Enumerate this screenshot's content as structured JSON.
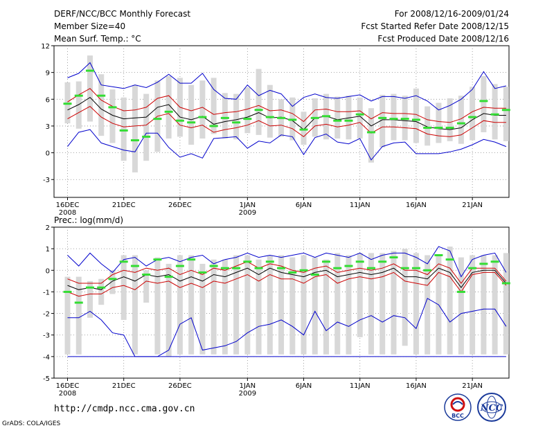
{
  "header": {
    "title": "DERF/NCC/BCC Monthly Forecast",
    "member_size": "Member Size=40",
    "range": "For 2008/12/16-2009/01/24",
    "started": "Fcst Started Refer Date 2008/12/15",
    "produced": "Fcst Produced Date 2008/12/16"
  },
  "footer": {
    "url": "http://cmdp.ncc.cma.gov.cn",
    "grads": "GrADS: COLA/IGES",
    "logo_bcc": "BCC",
    "logo_ncc": "NCC"
  },
  "colors": {
    "box": "#d8d8d8",
    "obs": "#33dd33",
    "mean": "#000000",
    "spread": "#cc0000",
    "envelope": "#0000cc"
  },
  "chart_data": [
    {
      "type": "line",
      "title": "Mean Surf. Temp.: °C",
      "ylim": [
        -5,
        12
      ],
      "yticks": [
        -3,
        0,
        3,
        6,
        9,
        12
      ],
      "xticks": [
        {
          "day": 1,
          "label": "16DEC",
          "sub": "2008"
        },
        {
          "day": 6,
          "label": "21DEC",
          "sub": ""
        },
        {
          "day": 11,
          "label": "26DEC",
          "sub": ""
        },
        {
          "day": 17,
          "label": "1JAN",
          "sub": "2009"
        },
        {
          "day": 22,
          "label": "6JAN",
          "sub": ""
        },
        {
          "day": 27,
          "label": "11JAN",
          "sub": ""
        },
        {
          "day": 32,
          "label": "16JAN",
          "sub": ""
        },
        {
          "day": 37,
          "label": "21JAN",
          "sub": ""
        }
      ],
      "days": [
        1,
        2,
        3,
        4,
        5,
        6,
        7,
        8,
        9,
        10,
        11,
        12,
        13,
        14,
        15,
        16,
        17,
        18,
        19,
        20,
        21,
        22,
        23,
        24,
        25,
        26,
        27,
        28,
        29,
        30,
        31,
        32,
        33,
        34,
        35,
        36,
        37,
        38,
        39,
        40
      ],
      "box_low": [
        3.3,
        2.7,
        3.5,
        1.9,
        1.1,
        -0.9,
        -2.2,
        -0.9,
        0.1,
        1.6,
        1.8,
        0.9,
        1.6,
        2.1,
        1.6,
        1.5,
        2.2,
        2.0,
        1.7,
        1.8,
        1.4,
        0.9,
        1.8,
        1.5,
        1.6,
        1.5,
        1.6,
        -1.1,
        0.6,
        1.4,
        1.4,
        1.1,
        0.8,
        1.1,
        1.3,
        1.0,
        1.4,
        2.3,
        1.5,
        1.3
      ],
      "box_high": [
        7.9,
        8.0,
        10.9,
        8.8,
        7.1,
        6.2,
        7.6,
        6.6,
        8.1,
        8.6,
        8.4,
        7.6,
        8.1,
        8.4,
        6.7,
        6.6,
        7.3,
        9.4,
        7.6,
        6.0,
        6.2,
        4.6,
        6.1,
        6.6,
        6.3,
        6.4,
        6.2,
        5.0,
        6.5,
        6.6,
        6.4,
        7.2,
        5.2,
        5.6,
        6.1,
        6.4,
        7.4,
        8.6,
        7.7,
        7.4
      ],
      "obs": [
        5.5,
        6.4,
        9.2,
        6.4,
        5.1,
        2.5,
        1.4,
        1.8,
        3.8,
        4.6,
        3.6,
        3.4,
        4.0,
        3.0,
        3.9,
        3.4,
        3.8,
        4.8,
        4.0,
        3.9,
        3.7,
        2.6,
        3.9,
        4.1,
        3.6,
        3.6,
        4.3,
        2.3,
        3.9,
        3.8,
        3.8,
        3.7,
        2.8,
        2.8,
        2.8,
        3.3,
        4.0,
        5.8,
        4.3,
        4.8
      ],
      "mean": [
        4.8,
        5.4,
        6.2,
        4.9,
        4.2,
        3.8,
        3.9,
        4.0,
        5.1,
        5.4,
        4.0,
        3.7,
        4.1,
        3.2,
        3.5,
        3.7,
        4.0,
        4.5,
        3.9,
        4.0,
        3.6,
        2.6,
        3.9,
        4.1,
        3.7,
        3.9,
        4.1,
        3.0,
        3.7,
        3.7,
        3.6,
        3.5,
        2.9,
        2.7,
        2.6,
        2.8,
        3.7,
        4.4,
        4.2,
        4.2
      ],
      "upper_sd": [
        5.7,
        6.5,
        7.2,
        5.9,
        5.2,
        4.7,
        4.8,
        5.1,
        6.1,
        6.4,
        5.1,
        4.7,
        5.1,
        4.3,
        4.5,
        4.6,
        4.9,
        5.3,
        4.7,
        4.8,
        4.4,
        3.5,
        4.8,
        4.9,
        4.6,
        4.6,
        4.7,
        3.8,
        4.5,
        4.4,
        4.4,
        4.3,
        3.7,
        3.5,
        3.4,
        3.8,
        4.6,
        5.1,
        5.0,
        5.0
      ],
      "lower_sd": [
        3.8,
        4.5,
        5.2,
        4.0,
        3.3,
        2.9,
        3.0,
        3.1,
        4.1,
        4.4,
        3.1,
        2.8,
        3.1,
        2.3,
        2.6,
        2.8,
        3.1,
        3.6,
        3.0,
        3.1,
        2.7,
        1.8,
        3.0,
        3.2,
        2.9,
        3.1,
        3.4,
        2.2,
        2.9,
        2.9,
        2.8,
        2.7,
        2.1,
        1.9,
        1.8,
        2.0,
        2.8,
        3.6,
        3.4,
        3.4
      ],
      "env_high": [
        8.4,
        8.9,
        10.1,
        7.6,
        7.4,
        7.2,
        7.6,
        7.3,
        7.9,
        8.8,
        7.8,
        7.8,
        8.9,
        7.1,
        6.1,
        6.0,
        7.6,
        6.4,
        7.0,
        6.6,
        5.2,
        6.2,
        6.6,
        6.2,
        6.1,
        6.3,
        6.5,
        5.8,
        6.3,
        6.3,
        6.1,
        6.4,
        5.8,
        4.8,
        5.3,
        6.0,
        7.1,
        9.1,
        7.2,
        7.5
      ],
      "env_low": [
        0.7,
        2.3,
        2.6,
        1.1,
        0.7,
        0.3,
        0.1,
        2.2,
        2.2,
        0.6,
        -0.5,
        -0.1,
        -0.6,
        1.6,
        1.7,
        1.8,
        0.5,
        1.3,
        1.1,
        2.0,
        1.8,
        -0.2,
        1.7,
        2.1,
        1.2,
        1.0,
        1.6,
        -0.8,
        0.7,
        1.1,
        1.2,
        -0.1,
        -0.1,
        -0.1,
        0.1,
        0.4,
        0.9,
        1.5,
        1.2,
        0.7
      ]
    },
    {
      "type": "line",
      "title": "Prec.: log(mm/d)",
      "ylim": [
        -5,
        2
      ],
      "yticks": [
        -5,
        -4,
        -3,
        -2,
        -1,
        0,
        1,
        2
      ],
      "xticks": [
        {
          "day": 1,
          "label": "16DEC",
          "sub": "2008"
        },
        {
          "day": 6,
          "label": "21DEC",
          "sub": ""
        },
        {
          "day": 11,
          "label": "26DEC",
          "sub": ""
        },
        {
          "day": 17,
          "label": "1JAN",
          "sub": "2009"
        },
        {
          "day": 22,
          "label": "6JAN",
          "sub": ""
        },
        {
          "day": 27,
          "label": "11JAN",
          "sub": ""
        },
        {
          "day": 32,
          "label": "16JAN",
          "sub": ""
        },
        {
          "day": 37,
          "label": "21JAN",
          "sub": ""
        }
      ],
      "days": [
        1,
        2,
        3,
        4,
        5,
        6,
        7,
        8,
        9,
        10,
        11,
        12,
        13,
        14,
        15,
        16,
        17,
        18,
        19,
        20,
        21,
        22,
        23,
        24,
        25,
        26,
        27,
        28,
        29,
        30,
        31,
        32,
        33,
        34,
        35,
        36,
        37,
        38,
        39,
        40
      ],
      "box_low": [
        -3.9,
        -3.9,
        -2.2,
        -1.6,
        -1.1,
        -2.3,
        -3.9,
        -1.5,
        -3.9,
        -4.0,
        -3.9,
        -3.9,
        -3.9,
        -3.9,
        -3.9,
        -3.9,
        -3.9,
        -3.9,
        -3.9,
        -3.9,
        -3.9,
        -3.9,
        -3.9,
        -3.9,
        -3.9,
        -3.9,
        -3.1,
        -3.9,
        -3.9,
        -3.9,
        -3.5,
        -3.9,
        -3.9,
        -3.9,
        -3.9,
        -3.9,
        -3.9,
        -3.9,
        -3.9,
        -3.9
      ],
      "box_high": [
        -0.3,
        -0.3,
        -0.5,
        -0.4,
        0.0,
        0.7,
        0.7,
        0.0,
        0.6,
        0.3,
        0.7,
        0.7,
        0.3,
        0.5,
        0.5,
        0.7,
        0.7,
        0.5,
        0.7,
        0.7,
        0.6,
        0.7,
        0.6,
        0.5,
        0.8,
        0.7,
        0.8,
        0.8,
        0.8,
        0.9,
        1.0,
        0.8,
        0.7,
        0.7,
        1.1,
        0.6,
        0.7,
        0.7,
        0.7,
        0.8
      ],
      "obs": [
        -1.0,
        -1.5,
        -0.8,
        -0.8,
        -0.4,
        0.4,
        0.2,
        -0.2,
        0.5,
        -0.3,
        0.2,
        0.5,
        -0.1,
        0.2,
        0.1,
        0.1,
        0.4,
        0.1,
        0.4,
        0.1,
        -0.1,
        0.0,
        -0.2,
        0.4,
        0.1,
        0.2,
        0.4,
        0.1,
        0.4,
        0.6,
        0.1,
        0.1,
        0.0,
        0.7,
        0.5,
        -1.0,
        0.1,
        0.3,
        0.4,
        -0.6
      ],
      "mean": [
        -0.7,
        -0.9,
        -0.8,
        -0.9,
        -0.5,
        -0.3,
        -0.5,
        -0.2,
        -0.3,
        -0.2,
        -0.5,
        -0.3,
        -0.5,
        -0.2,
        -0.3,
        -0.1,
        0.1,
        -0.2,
        0.1,
        -0.1,
        -0.2,
        -0.3,
        -0.1,
        0.0,
        -0.3,
        -0.2,
        -0.1,
        -0.2,
        -0.1,
        0.1,
        -0.3,
        -0.3,
        -0.4,
        0.1,
        -0.1,
        -0.8,
        -0.1,
        0.0,
        0.0,
        -0.6
      ],
      "upper_sd": [
        -0.4,
        -0.6,
        -0.6,
        -0.6,
        -0.2,
        0.0,
        -0.1,
        0.1,
        0.0,
        0.1,
        -0.2,
        0.0,
        -0.2,
        0.1,
        0.0,
        0.2,
        0.4,
        0.1,
        0.3,
        0.2,
        0.0,
        -0.1,
        0.1,
        0.2,
        -0.1,
        0.0,
        0.1,
        0.0,
        0.1,
        0.3,
        0.0,
        0.0,
        -0.2,
        0.3,
        0.1,
        -0.6,
        0.1,
        0.1,
        0.1,
        -0.5
      ],
      "lower_sd": [
        -1.0,
        -1.2,
        -1.1,
        -1.1,
        -0.8,
        -0.7,
        -0.9,
        -0.5,
        -0.6,
        -0.5,
        -0.8,
        -0.6,
        -0.8,
        -0.5,
        -0.6,
        -0.4,
        -0.2,
        -0.5,
        -0.2,
        -0.4,
        -0.4,
        -0.6,
        -0.3,
        -0.2,
        -0.6,
        -0.4,
        -0.3,
        -0.4,
        -0.3,
        -0.1,
        -0.5,
        -0.6,
        -0.7,
        -0.1,
        -0.3,
        -1.0,
        -0.2,
        -0.1,
        -0.1,
        -0.7
      ],
      "env_high": [
        0.7,
        0.2,
        0.8,
        0.3,
        -0.1,
        0.5,
        0.6,
        0.2,
        0.5,
        0.6,
        0.4,
        0.6,
        0.7,
        0.3,
        0.5,
        0.6,
        0.8,
        0.6,
        0.7,
        0.6,
        0.7,
        0.8,
        0.6,
        0.8,
        0.7,
        0.6,
        0.8,
        0.5,
        0.7,
        0.8,
        0.8,
        0.6,
        0.3,
        1.1,
        0.9,
        -0.3,
        0.5,
        0.7,
        0.8,
        -0.1
      ],
      "env_low": [
        -2.2,
        -2.2,
        -1.9,
        -2.3,
        -2.9,
        -3.0,
        -4.0,
        -4.0,
        -4.0,
        -3.7,
        -2.5,
        -2.2,
        -3.7,
        -3.6,
        -3.5,
        -3.3,
        -2.9,
        -2.6,
        -2.5,
        -2.3,
        -2.6,
        -3.0,
        -1.9,
        -2.8,
        -2.4,
        -2.6,
        -2.3,
        -2.1,
        -2.4,
        -2.1,
        -2.2,
        -2.7,
        -1.3,
        -1.6,
        -2.4,
        -2.0,
        -1.9,
        -1.8,
        -1.8,
        -2.6
      ],
      "floor": -4.0
    }
  ]
}
